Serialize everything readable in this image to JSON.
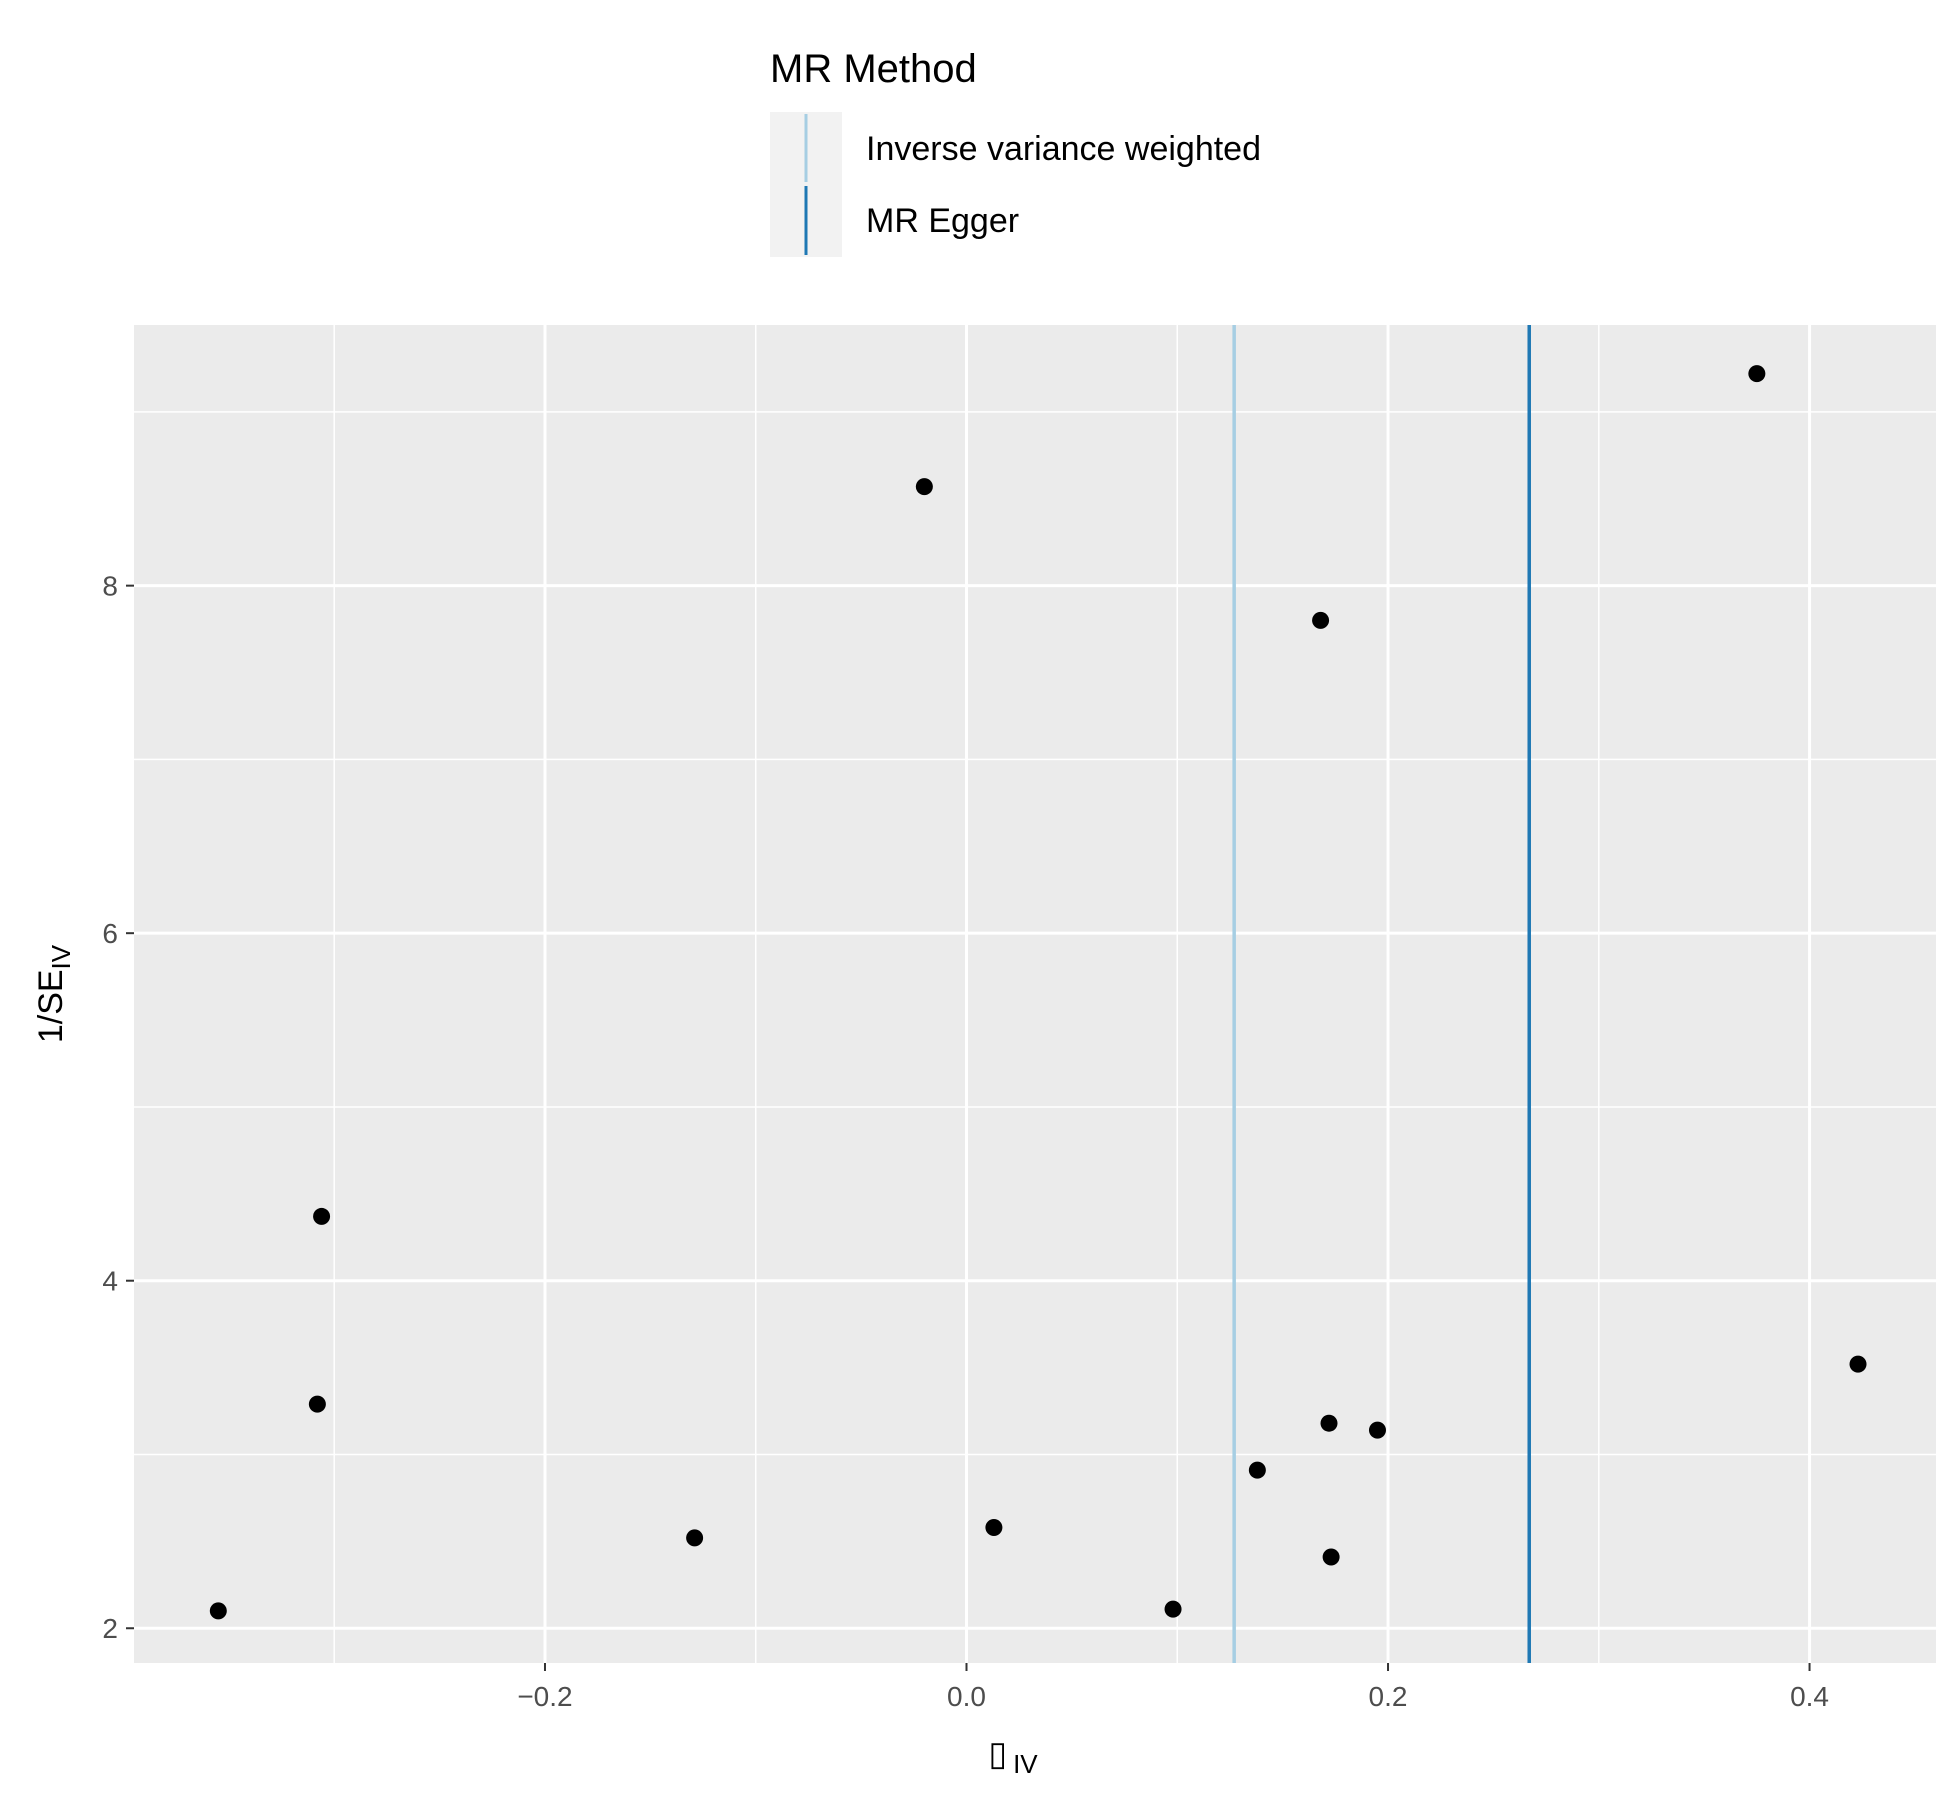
{
  "legend": {
    "title": "MR Method",
    "entries": [
      {
        "label": "Inverse variance weighted",
        "color": "#a6cee3"
      },
      {
        "label": "MR Egger",
        "color": "#1f78b4"
      }
    ]
  },
  "colors": {
    "panel_background": "#ebebeb",
    "grid_line": "#ffffff",
    "point": "#000000"
  },
  "chart_data": {
    "type": "scatter",
    "title": "",
    "xlabel": "▯",
    "xlabel_sub": "IV",
    "ylabel": "1/SE",
    "ylabel_sub": "IV",
    "xlim": [
      -0.395,
      0.46
    ],
    "ylim": [
      1.8,
      9.5
    ],
    "x_ticks": [
      -0.2,
      0.0,
      0.2,
      0.4
    ],
    "x_tick_labels": [
      "−0.2",
      "0.0",
      "0.2",
      "0.4"
    ],
    "y_ticks": [
      2,
      4,
      6,
      8
    ],
    "y_tick_labels": [
      "2",
      "4",
      "6",
      "8"
    ],
    "grid": true,
    "legend_position": "top",
    "vlines": [
      {
        "name": "Inverse variance weighted",
        "x": 0.127
      },
      {
        "name": "MR Egger",
        "x": 0.267
      }
    ],
    "points": [
      {
        "x": 0.375,
        "y": 9.22
      },
      {
        "x": -0.02,
        "y": 8.57
      },
      {
        "x": 0.168,
        "y": 7.8
      },
      {
        "x": -0.306,
        "y": 4.37
      },
      {
        "x": -0.308,
        "y": 3.29
      },
      {
        "x": 0.423,
        "y": 3.52
      },
      {
        "x": 0.172,
        "y": 3.18
      },
      {
        "x": 0.195,
        "y": 3.14
      },
      {
        "x": 0.138,
        "y": 2.91
      },
      {
        "x": 0.013,
        "y": 2.58
      },
      {
        "x": -0.129,
        "y": 2.52
      },
      {
        "x": 0.173,
        "y": 2.41
      },
      {
        "x": 0.098,
        "y": 2.11
      },
      {
        "x": -0.355,
        "y": 2.1
      }
    ]
  }
}
